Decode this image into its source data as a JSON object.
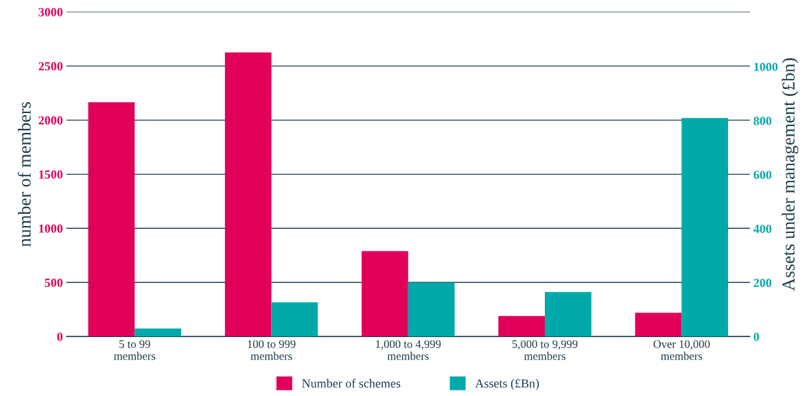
{
  "chart_data": {
    "type": "bar",
    "ylabel": "number of members",
    "y2label": "Assets under management (£bn)",
    "categories": [
      "5 to 99\nmembers",
      "100 to 999\nmembers",
      "1,000 to 4,999\nmembers",
      "5,000 to 9,999\nmembers",
      "Over 10,000\nmembers"
    ],
    "series": [
      {
        "name": "Number of schemes",
        "color": "#e0005a",
        "values": [
          2165,
          2625,
          790,
          190,
          220
        ]
      },
      {
        "name": "Assets (£Bn)",
        "color": "#00a9a9",
        "axis": "y2",
        "values": [
          30,
          127,
          200,
          165,
          810
        ]
      }
    ],
    "ylim": [
      0,
      3000
    ],
    "yticks": [
      0,
      500,
      1000,
      1500,
      2000,
      2500,
      3000
    ],
    "y2lim": [
      0,
      1203
    ],
    "y2ticks": [
      0,
      200,
      400,
      600,
      800,
      1000
    ],
    "grid": "y",
    "legend": "bottom"
  }
}
